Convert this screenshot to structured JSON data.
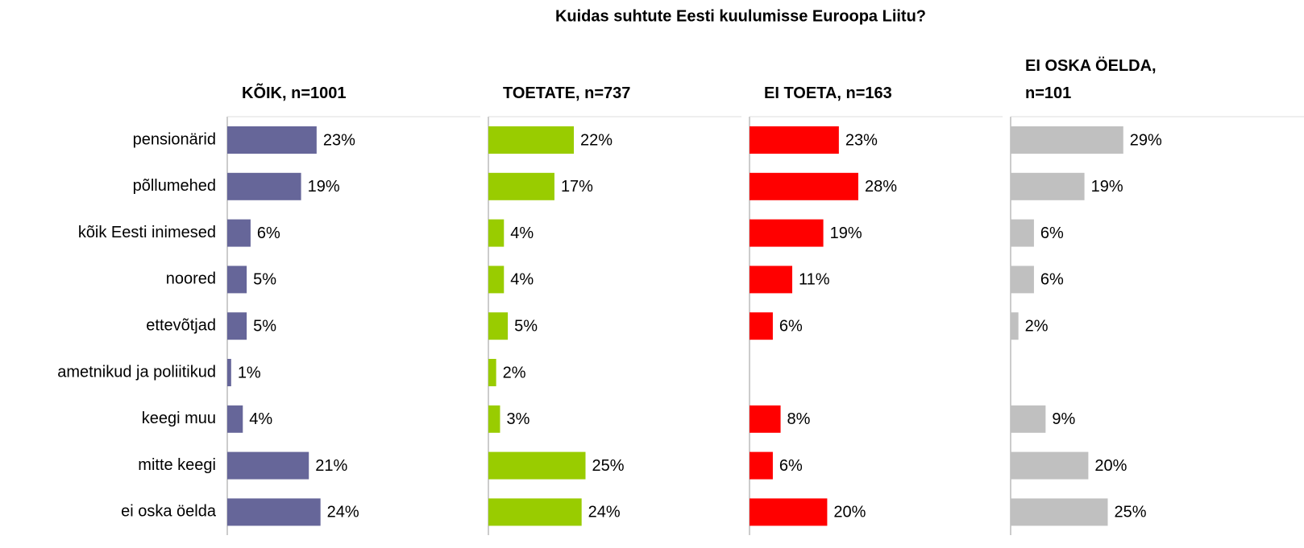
{
  "title": "Kuidas suhtute Eesti kuulumisse Euroopa Liitu?",
  "chart_data": [
    {
      "type": "bar",
      "title": "KÕIK, n=1001",
      "color": "#666699",
      "categories": [
        "pensionärid",
        "põllumehed",
        "kõik Eesti inimesed",
        "noored",
        "ettevõtjad",
        "ametnikud ja poliitikud",
        "keegi muu",
        "mitte keegi",
        "ei oska öelda"
      ],
      "values": [
        23,
        19,
        6,
        5,
        5,
        1,
        4,
        21,
        24
      ],
      "value_labels": [
        "23%",
        "19%",
        "6%",
        "5%",
        "5%",
        "1%",
        "4%",
        "21%",
        "24%"
      ]
    },
    {
      "type": "bar",
      "title": "TOETATE, n=737",
      "color": "#99cc00",
      "values": [
        22,
        17,
        4,
        4,
        5,
        2,
        3,
        25,
        24
      ],
      "value_labels": [
        "22%",
        "17%",
        "4%",
        "4%",
        "5%",
        "2%",
        "3%",
        "25%",
        "24%"
      ]
    },
    {
      "type": "bar",
      "title": "EI TOETA, n=163",
      "color": "#ff0000",
      "values": [
        23,
        28,
        19,
        11,
        6,
        null,
        8,
        6,
        20
      ],
      "value_labels": [
        "23%",
        "28%",
        "19%",
        "11%",
        "6%",
        null,
        "8%",
        "6%",
        "20%"
      ]
    },
    {
      "type": "bar",
      "title": "EI OSKA ÖELDA, n=101",
      "color": "#c0c0c0",
      "values": [
        29,
        19,
        6,
        6,
        2,
        null,
        9,
        20,
        25
      ],
      "value_labels": [
        "29%",
        "19%",
        "6%",
        "6%",
        "2%",
        null,
        "9%",
        "20%",
        "25%"
      ]
    }
  ]
}
